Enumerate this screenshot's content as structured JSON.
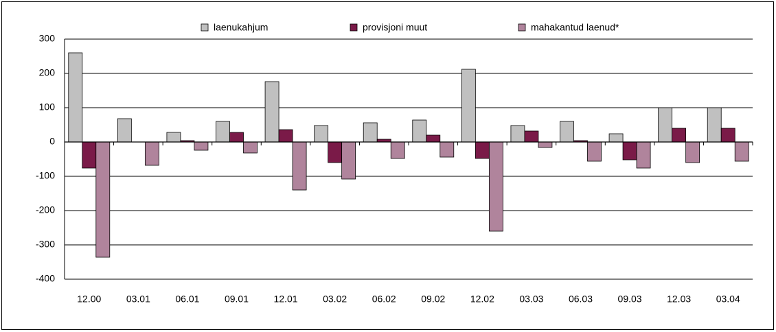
{
  "chart_data": {
    "type": "bar",
    "categories": [
      "12.00",
      "03.01",
      "06.01",
      "09.01",
      "12.01",
      "03.02",
      "06.02",
      "09.02",
      "12.02",
      "03.03",
      "06.03",
      "09.03",
      "12.03",
      "03.04"
    ],
    "series": [
      {
        "name": "laenukahjum",
        "color": "#c0c0c0",
        "values": [
          260,
          68,
          28,
          60,
          176,
          48,
          56,
          64,
          212,
          48,
          60,
          24,
          100,
          100
        ]
      },
      {
        "name": "provisjoni muut",
        "color": "#7a1a48",
        "values": [
          -76,
          0,
          4,
          28,
          36,
          -60,
          8,
          20,
          -48,
          32,
          4,
          -52,
          40,
          40
        ]
      },
      {
        "name": "mahakantud laenud*",
        "color": "#b0849c",
        "values": [
          -336,
          -68,
          -24,
          -32,
          -140,
          -108,
          -48,
          -44,
          -260,
          -16,
          -56,
          -76,
          -60,
          -56
        ]
      }
    ],
    "ylim": [
      -400,
      300
    ],
    "yticks": [
      -400,
      -300,
      -200,
      -100,
      0,
      100,
      200,
      300
    ],
    "grid": true
  }
}
